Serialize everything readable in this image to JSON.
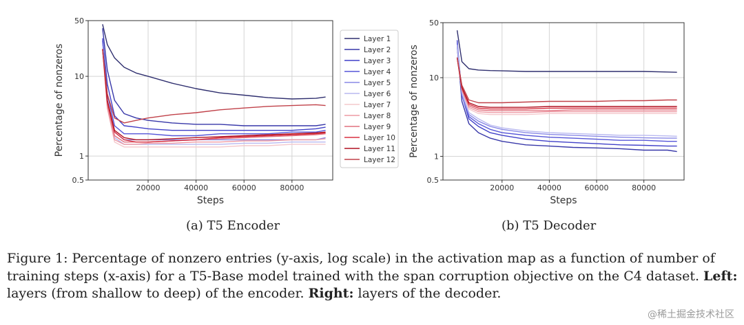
{
  "chart_data": [
    {
      "type": "line",
      "subtitle": "(a) T5 Encoder",
      "xlabel": "Steps",
      "ylabel": "Percentage of nonzeros",
      "xlim": [
        -5000,
        97000
      ],
      "ylim": [
        0.5,
        50
      ],
      "yscale": "log",
      "xticks": [
        20000,
        40000,
        60000,
        80000
      ],
      "yticks": [
        0.5,
        1,
        10,
        50
      ],
      "grid": true,
      "legend": "right",
      "series": [
        {
          "name": "Layer 1",
          "color": "#2e2e6e",
          "x": [
            1000,
            3000,
            6000,
            10000,
            15000,
            20000,
            30000,
            40000,
            50000,
            60000,
            70000,
            80000,
            90000,
            94000
          ],
          "y": [
            45,
            25,
            17,
            13,
            11,
            10,
            8.2,
            7.0,
            6.2,
            5.8,
            5.4,
            5.2,
            5.3,
            5.5
          ]
        },
        {
          "name": "Layer 2",
          "color": "#3636a8",
          "x": [
            1000,
            3000,
            6000,
            10000,
            15000,
            20000,
            30000,
            40000,
            50000,
            60000,
            70000,
            80000,
            90000,
            94000
          ],
          "y": [
            40,
            12,
            5,
            3.4,
            3.0,
            2.8,
            2.6,
            2.5,
            2.5,
            2.4,
            2.4,
            2.4,
            2.4,
            2.5
          ]
        },
        {
          "name": "Layer 3",
          "color": "#3f3fc8",
          "x": [
            1000,
            3000,
            6000,
            10000,
            15000,
            20000,
            30000,
            40000,
            50000,
            60000,
            70000,
            80000,
            90000,
            94000
          ],
          "y": [
            30,
            8,
            3.2,
            2.4,
            2.3,
            2.2,
            2.1,
            2.1,
            2.1,
            2.1,
            2.1,
            2.1,
            2.2,
            2.3
          ]
        },
        {
          "name": "Layer 4",
          "color": "#5555d8",
          "x": [
            1000,
            3000,
            6000,
            10000,
            15000,
            20000,
            30000,
            40000,
            50000,
            60000,
            70000,
            80000,
            90000,
            94000
          ],
          "y": [
            28,
            6,
            2.4,
            1.9,
            1.9,
            1.9,
            1.8,
            1.8,
            1.9,
            1.9,
            1.9,
            2.0,
            2.0,
            2.1
          ]
        },
        {
          "name": "Layer 5",
          "color": "#8888e6",
          "x": [
            1000,
            3000,
            6000,
            10000,
            15000,
            20000,
            30000,
            40000,
            50000,
            60000,
            70000,
            80000,
            90000,
            94000
          ],
          "y": [
            26,
            5,
            2.0,
            1.6,
            1.6,
            1.6,
            1.6,
            1.6,
            1.6,
            1.6,
            1.6,
            1.6,
            1.6,
            1.7
          ]
        },
        {
          "name": "Layer 6",
          "color": "#b8b8f0",
          "x": [
            1000,
            3000,
            6000,
            10000,
            15000,
            20000,
            30000,
            40000,
            50000,
            60000,
            70000,
            80000,
            90000,
            94000
          ],
          "y": [
            24,
            4.5,
            1.7,
            1.4,
            1.4,
            1.4,
            1.4,
            1.4,
            1.4,
            1.45,
            1.45,
            1.5,
            1.5,
            1.5
          ]
        },
        {
          "name": "Layer 7",
          "color": "#f4c8cc",
          "x": [
            1000,
            3000,
            6000,
            10000,
            15000,
            20000,
            30000,
            40000,
            50000,
            60000,
            70000,
            80000,
            90000,
            94000
          ],
          "y": [
            22,
            4.0,
            1.5,
            1.3,
            1.3,
            1.3,
            1.3,
            1.3,
            1.3,
            1.35,
            1.35,
            1.4,
            1.4,
            1.4
          ]
        },
        {
          "name": "Layer 8",
          "color": "#ee9aa4",
          "x": [
            1000,
            3000,
            6000,
            10000,
            15000,
            20000,
            30000,
            40000,
            50000,
            60000,
            70000,
            80000,
            90000,
            94000
          ],
          "y": [
            22,
            4.0,
            1.6,
            1.4,
            1.4,
            1.45,
            1.45,
            1.5,
            1.5,
            1.55,
            1.55,
            1.6,
            1.6,
            1.65
          ]
        },
        {
          "name": "Layer 9",
          "color": "#e0707e",
          "x": [
            1000,
            3000,
            6000,
            10000,
            15000,
            20000,
            30000,
            40000,
            50000,
            60000,
            70000,
            80000,
            90000,
            94000
          ],
          "y": [
            22,
            4.5,
            1.8,
            1.5,
            1.5,
            1.5,
            1.55,
            1.6,
            1.65,
            1.7,
            1.75,
            1.8,
            1.85,
            1.9
          ]
        },
        {
          "name": "Layer 10",
          "color": "#d83040",
          "x": [
            1000,
            3000,
            6000,
            10000,
            15000,
            20000,
            30000,
            40000,
            50000,
            60000,
            70000,
            80000,
            90000,
            94000
          ],
          "y": [
            22,
            4.8,
            2.0,
            1.6,
            1.5,
            1.5,
            1.55,
            1.6,
            1.7,
            1.75,
            1.8,
            1.85,
            1.9,
            1.95
          ]
        },
        {
          "name": "Layer 11",
          "color": "#b01020",
          "x": [
            1000,
            3000,
            6000,
            10000,
            15000,
            20000,
            30000,
            40000,
            50000,
            60000,
            70000,
            80000,
            90000,
            94000
          ],
          "y": [
            22,
            5,
            2.1,
            1.7,
            1.6,
            1.6,
            1.65,
            1.7,
            1.75,
            1.8,
            1.85,
            1.9,
            1.95,
            2.0
          ]
        },
        {
          "name": "Layer 12",
          "color": "#c04048",
          "x": [
            1000,
            3000,
            6000,
            10000,
            15000,
            20000,
            30000,
            40000,
            50000,
            60000,
            70000,
            80000,
            90000,
            94000
          ],
          "y": [
            22,
            6,
            3.0,
            2.6,
            2.8,
            3.0,
            3.3,
            3.5,
            3.8,
            4.0,
            4.2,
            4.3,
            4.4,
            4.3
          ]
        }
      ]
    },
    {
      "type": "line",
      "subtitle": "(b) T5 Decoder",
      "xlabel": "Steps",
      "ylabel": "Percentage of nonzeros",
      "xlim": [
        -5000,
        97000
      ],
      "ylim": [
        0.5,
        50
      ],
      "yscale": "log",
      "xticks": [
        20000,
        40000,
        60000,
        80000
      ],
      "yticks": [
        0.5,
        1,
        10,
        50
      ],
      "grid": true,
      "series": [
        {
          "name": "Layer 1",
          "color": "#2e2e6e",
          "x": [
            1000,
            3000,
            6000,
            10000,
            15000,
            20000,
            30000,
            40000,
            50000,
            60000,
            70000,
            80000,
            90000,
            94000
          ],
          "y": [
            40,
            16,
            13,
            12.5,
            12.3,
            12.2,
            12.0,
            12.0,
            12.0,
            12.0,
            12.0,
            12.0,
            11.8,
            11.7
          ]
        },
        {
          "name": "Layer 2",
          "color": "#3636a8",
          "x": [
            1000,
            3000,
            6000,
            10000,
            15000,
            20000,
            30000,
            40000,
            50000,
            60000,
            70000,
            80000,
            90000,
            94000
          ],
          "y": [
            25,
            5,
            2.6,
            2.0,
            1.7,
            1.55,
            1.4,
            1.35,
            1.3,
            1.28,
            1.25,
            1.2,
            1.2,
            1.15
          ]
        },
        {
          "name": "Layer 3",
          "color": "#3f3fc8",
          "x": [
            1000,
            3000,
            6000,
            10000,
            15000,
            20000,
            30000,
            40000,
            50000,
            60000,
            70000,
            80000,
            90000,
            94000
          ],
          "y": [
            30,
            6,
            3.0,
            2.4,
            2.0,
            1.85,
            1.65,
            1.55,
            1.5,
            1.45,
            1.4,
            1.38,
            1.35,
            1.35
          ]
        },
        {
          "name": "Layer 4",
          "color": "#5555d8",
          "x": [
            1000,
            3000,
            6000,
            10000,
            15000,
            20000,
            30000,
            40000,
            50000,
            60000,
            70000,
            80000,
            90000,
            94000
          ],
          "y": [
            28,
            6,
            3.2,
            2.6,
            2.2,
            2.0,
            1.85,
            1.75,
            1.7,
            1.65,
            1.6,
            1.6,
            1.55,
            1.55
          ]
        },
        {
          "name": "Layer 5",
          "color": "#8888e6",
          "x": [
            1000,
            3000,
            6000,
            10000,
            15000,
            20000,
            30000,
            40000,
            50000,
            60000,
            70000,
            80000,
            90000,
            94000
          ],
          "y": [
            26,
            6,
            3.4,
            2.8,
            2.4,
            2.2,
            2.0,
            1.9,
            1.85,
            1.8,
            1.75,
            1.72,
            1.7,
            1.7
          ]
        },
        {
          "name": "Layer 6",
          "color": "#b8b8f0",
          "x": [
            1000,
            3000,
            6000,
            10000,
            15000,
            20000,
            30000,
            40000,
            50000,
            60000,
            70000,
            80000,
            90000,
            94000
          ],
          "y": [
            26,
            6.5,
            3.6,
            3.0,
            2.5,
            2.3,
            2.1,
            2.0,
            1.95,
            1.9,
            1.85,
            1.85,
            1.82,
            1.8
          ]
        },
        {
          "name": "Layer 7",
          "color": "#f4c8cc",
          "x": [
            1000,
            3000,
            6000,
            10000,
            15000,
            20000,
            30000,
            40000,
            50000,
            60000,
            70000,
            80000,
            90000,
            94000
          ],
          "y": [
            18,
            7,
            4.0,
            3.5,
            3.4,
            3.4,
            3.4,
            3.5,
            3.5,
            3.5,
            3.5,
            3.5,
            3.5,
            3.5
          ]
        },
        {
          "name": "Layer 8",
          "color": "#ee9aa4",
          "x": [
            1000,
            3000,
            6000,
            10000,
            15000,
            20000,
            30000,
            40000,
            50000,
            60000,
            70000,
            80000,
            90000,
            94000
          ],
          "y": [
            18,
            7,
            4.2,
            3.7,
            3.6,
            3.6,
            3.6,
            3.7,
            3.7,
            3.7,
            3.7,
            3.7,
            3.7,
            3.7
          ]
        },
        {
          "name": "Layer 9",
          "color": "#e0707e",
          "x": [
            1000,
            3000,
            6000,
            10000,
            15000,
            20000,
            30000,
            40000,
            50000,
            60000,
            70000,
            80000,
            90000,
            94000
          ],
          "y": [
            18,
            7,
            4.4,
            3.9,
            3.8,
            3.8,
            3.8,
            3.8,
            3.9,
            3.9,
            3.9,
            3.9,
            3.9,
            3.9
          ]
        },
        {
          "name": "Layer 10",
          "color": "#d83040",
          "x": [
            1000,
            3000,
            6000,
            10000,
            15000,
            20000,
            30000,
            40000,
            50000,
            60000,
            70000,
            80000,
            90000,
            94000
          ],
          "y": [
            18,
            7.5,
            4.6,
            4.1,
            4.0,
            4.0,
            4.0,
            4.1,
            4.1,
            4.1,
            4.1,
            4.1,
            4.1,
            4.1
          ]
        },
        {
          "name": "Layer 11",
          "color": "#b01020",
          "x": [
            1000,
            3000,
            6000,
            10000,
            15000,
            20000,
            30000,
            40000,
            50000,
            60000,
            70000,
            80000,
            90000,
            94000
          ],
          "y": [
            18,
            7.5,
            4.8,
            4.3,
            4.2,
            4.2,
            4.2,
            4.3,
            4.3,
            4.3,
            4.3,
            4.3,
            4.3,
            4.3
          ]
        },
        {
          "name": "Layer 12",
          "color": "#c04048",
          "x": [
            1000,
            3000,
            6000,
            10000,
            15000,
            20000,
            30000,
            40000,
            50000,
            60000,
            70000,
            80000,
            90000,
            94000
          ],
          "y": [
            18,
            8,
            5.2,
            4.8,
            4.8,
            4.8,
            4.9,
            5.0,
            5.0,
            5.0,
            5.1,
            5.1,
            5.2,
            5.2
          ]
        }
      ]
    }
  ],
  "caption": {
    "prefix": "Figure 1: Percentage of nonzero entries (y-axis, log scale) in the activation map as a function of number of training steps (x-axis) for a T5-Base model trained with the span corruption objective on the C4 dataset. ",
    "left_label": "Left:",
    "left_text": " layers (from shallow to deep) of the encoder. ",
    "right_label": "Right:",
    "right_text": " layers of the decoder."
  },
  "watermark": "@稀土掘金技术社区"
}
